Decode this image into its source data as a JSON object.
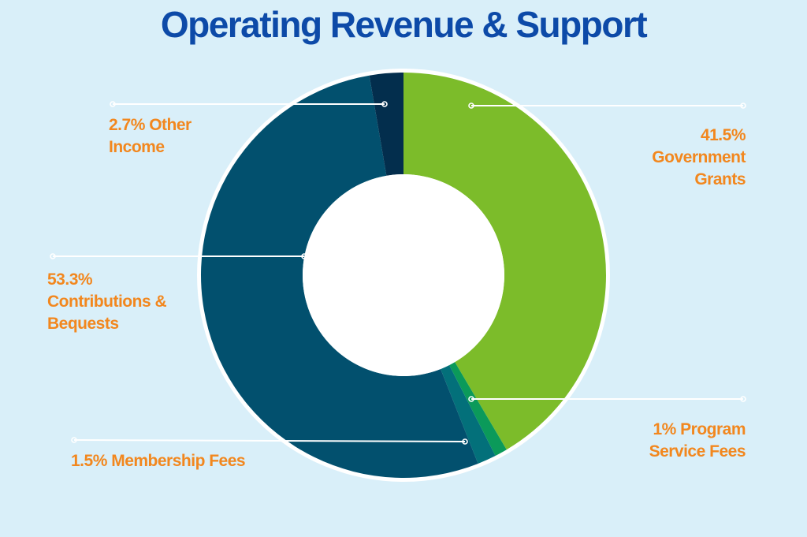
{
  "title": "Operating Revenue & Support",
  "colors": {
    "background": "#d9eff9",
    "title": "#0d4aa8",
    "label": "#f2871e",
    "leader": "#ffffff",
    "ring": "#ffffff"
  },
  "chart_data": {
    "type": "pie",
    "title": "Operating Revenue & Support",
    "donut": true,
    "slices": [
      {
        "label": "Government Grants",
        "value": 41.5,
        "color": "#7cbc2a",
        "display": "41.5%\nGovernment\nGrants"
      },
      {
        "label": "Program Service Fees",
        "value": 1.0,
        "color": "#0b9a5a",
        "display": "1% Program\nService Fees"
      },
      {
        "label": "Membership Fees",
        "value": 1.5,
        "color": "#03707a",
        "display": "1.5% Membership Fees"
      },
      {
        "label": "Contributions & Bequests",
        "value": 53.3,
        "color": "#02506e",
        "display": "53.3%\nContributions &\nBequests"
      },
      {
        "label": "Other Income",
        "value": 2.7,
        "color": "#032e4d",
        "display": "2.7% Other\nIncome"
      }
    ]
  }
}
